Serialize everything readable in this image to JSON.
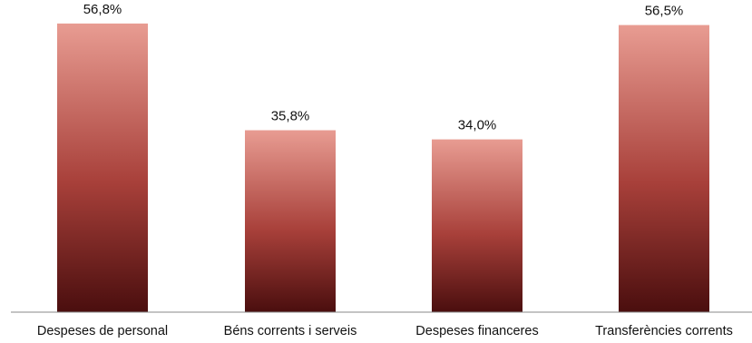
{
  "chart_data": {
    "type": "bar",
    "title": "",
    "xlabel": "",
    "ylabel": "",
    "categories": [
      "Despeses de personal",
      "Béns corrents i serveis",
      "Despeses financeres",
      "Transferències corrents"
    ],
    "values": [
      56.8,
      35.8,
      34.0,
      56.5
    ],
    "data_labels": [
      "56,8%",
      "35,8%",
      "34,0%",
      "56,5%"
    ],
    "ylim": [
      0,
      60
    ],
    "grid": false,
    "legend": "none",
    "colors": {
      "bar_top": "#e89c92",
      "bar_mid": "#a8403a",
      "bar_bottom": "#4a0e0e",
      "axis": "#8a8a8a"
    }
  }
}
